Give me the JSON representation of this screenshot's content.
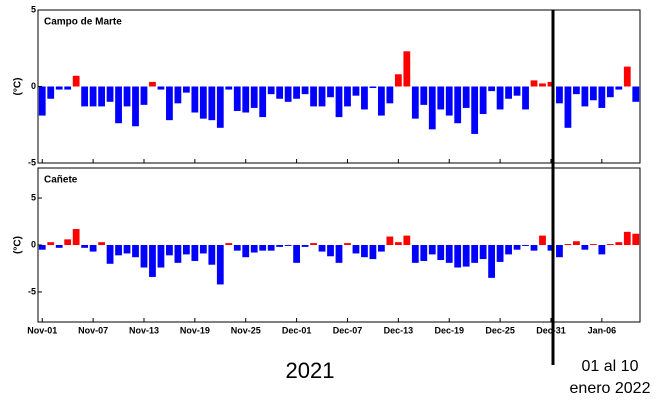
{
  "chart_data": [
    {
      "type": "bar",
      "title": "Campo de Marte",
      "y_label": "(°C)",
      "ylim": [
        -5,
        5
      ],
      "yticks": [
        -5,
        0,
        5
      ],
      "positive_color": "#ff0000",
      "negative_color": "#0000ff",
      "values": [
        -1.9,
        -0.8,
        -0.2,
        -0.2,
        0.7,
        -1.3,
        -1.3,
        -1.3,
        -1.0,
        -2.4,
        -1.3,
        -2.6,
        -1.2,
        0.3,
        -0.2,
        -2.2,
        -1.1,
        -0.4,
        -1.7,
        -2.1,
        -2.2,
        -2.7,
        -0.2,
        -1.6,
        -1.7,
        -1.4,
        -2.0,
        -0.5,
        -0.8,
        -1.0,
        -0.8,
        -0.5,
        -1.3,
        -1.3,
        -0.7,
        -2.0,
        -1.3,
        -0.6,
        -1.5,
        -0.1,
        -1.9,
        -1.1,
        0.8,
        2.3,
        -2.1,
        -1.2,
        -2.8,
        -1.5,
        -1.9,
        -2.4,
        -1.4,
        -3.1,
        -1.8,
        -0.3,
        -1.5,
        -0.8,
        -0.6,
        -1.5,
        0.4,
        0.2,
        0.3,
        -1.1,
        -2.7,
        -0.5,
        -1.3,
        -0.9,
        -1.4,
        -0.7,
        -0.2,
        1.3,
        -1.0
      ]
    },
    {
      "type": "bar",
      "title": "Cañete",
      "y_label": "(°C)",
      "ylim": [
        -8.2,
        8.2
      ],
      "yticks": [
        -5,
        0,
        5
      ],
      "positive_color": "#ff0000",
      "negative_color": "#0000ff",
      "categories": [
        "Nov-01",
        null,
        null,
        null,
        null,
        null,
        "Nov-07",
        null,
        null,
        null,
        null,
        null,
        "Nov-13",
        null,
        null,
        null,
        null,
        null,
        "Nov-19",
        null,
        null,
        null,
        null,
        null,
        "Nov-25",
        null,
        null,
        null,
        null,
        null,
        "Dec-01",
        null,
        null,
        null,
        null,
        null,
        "Dec-07",
        null,
        null,
        null,
        null,
        null,
        "Dec-13",
        null,
        null,
        null,
        null,
        null,
        "Dec-19",
        null,
        null,
        null,
        null,
        null,
        "Dec-25",
        null,
        null,
        null,
        null,
        null,
        "Dec-31",
        null,
        null,
        null,
        null,
        null,
        "Jan-06",
        null,
        null,
        null,
        null
      ],
      "values": [
        -0.5,
        0.3,
        -0.3,
        0.6,
        1.7,
        -0.3,
        -0.7,
        0.3,
        -2.0,
        -1.1,
        -0.9,
        -1.3,
        -2.4,
        -3.4,
        -2.4,
        -1.1,
        -1.9,
        -1.0,
        -1.7,
        -0.9,
        -2.1,
        -4.2,
        0.2,
        -0.6,
        -1.3,
        -0.8,
        -0.6,
        -0.6,
        -0.2,
        -0.1,
        -1.9,
        -0.2,
        0.2,
        -0.7,
        -1.2,
        -1.9,
        0.2,
        -0.9,
        -1.3,
        -1.5,
        -0.7,
        0.9,
        0.3,
        1.0,
        -1.9,
        -1.7,
        -1.0,
        -1.6,
        -1.9,
        -2.4,
        -2.3,
        -1.9,
        -1.5,
        -3.5,
        -1.8,
        -1.0,
        -0.5,
        -0.1,
        -0.6,
        1.0,
        -0.6,
        -1.3,
        0.1,
        0.4,
        -0.5,
        0.1,
        -1.0,
        0.1,
        0.3,
        1.4,
        1.2
      ]
    }
  ],
  "annotations": [
    "2021",
    "01 al 10",
    "enero 2022"
  ]
}
